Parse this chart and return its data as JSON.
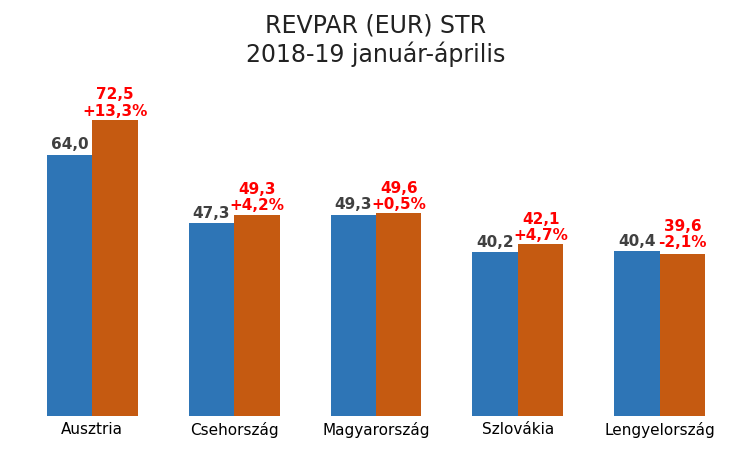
{
  "title_line1": "REVPAR (EUR) STR",
  "title_line2": "2018-19 január-április",
  "categories": [
    "Ausztria",
    "Csehország",
    "Magyarország",
    "Szlovákia",
    "Lengyelország"
  ],
  "values_2018": [
    64.0,
    47.3,
    49.3,
    40.2,
    40.4
  ],
  "values_2019": [
    72.5,
    49.3,
    49.6,
    42.1,
    39.6
  ],
  "pct_changes": [
    "+13,3%",
    "+4,2%",
    "+0,5%",
    "+4,7%",
    "-2,1%"
  ],
  "color_2018": "#2E75B6",
  "color_2019": "#C55A11",
  "label_color_2018": "#404040",
  "label_color_2019": "#FF0000",
  "background_color": "#FFFFFF",
  "ylim": [
    0,
    82
  ],
  "bar_width": 0.32,
  "gridline_color": "#CCCCCC",
  "title_fontsize": 17,
  "tick_fontsize": 11,
  "label_fontsize": 11,
  "pct_fontsize": 11
}
